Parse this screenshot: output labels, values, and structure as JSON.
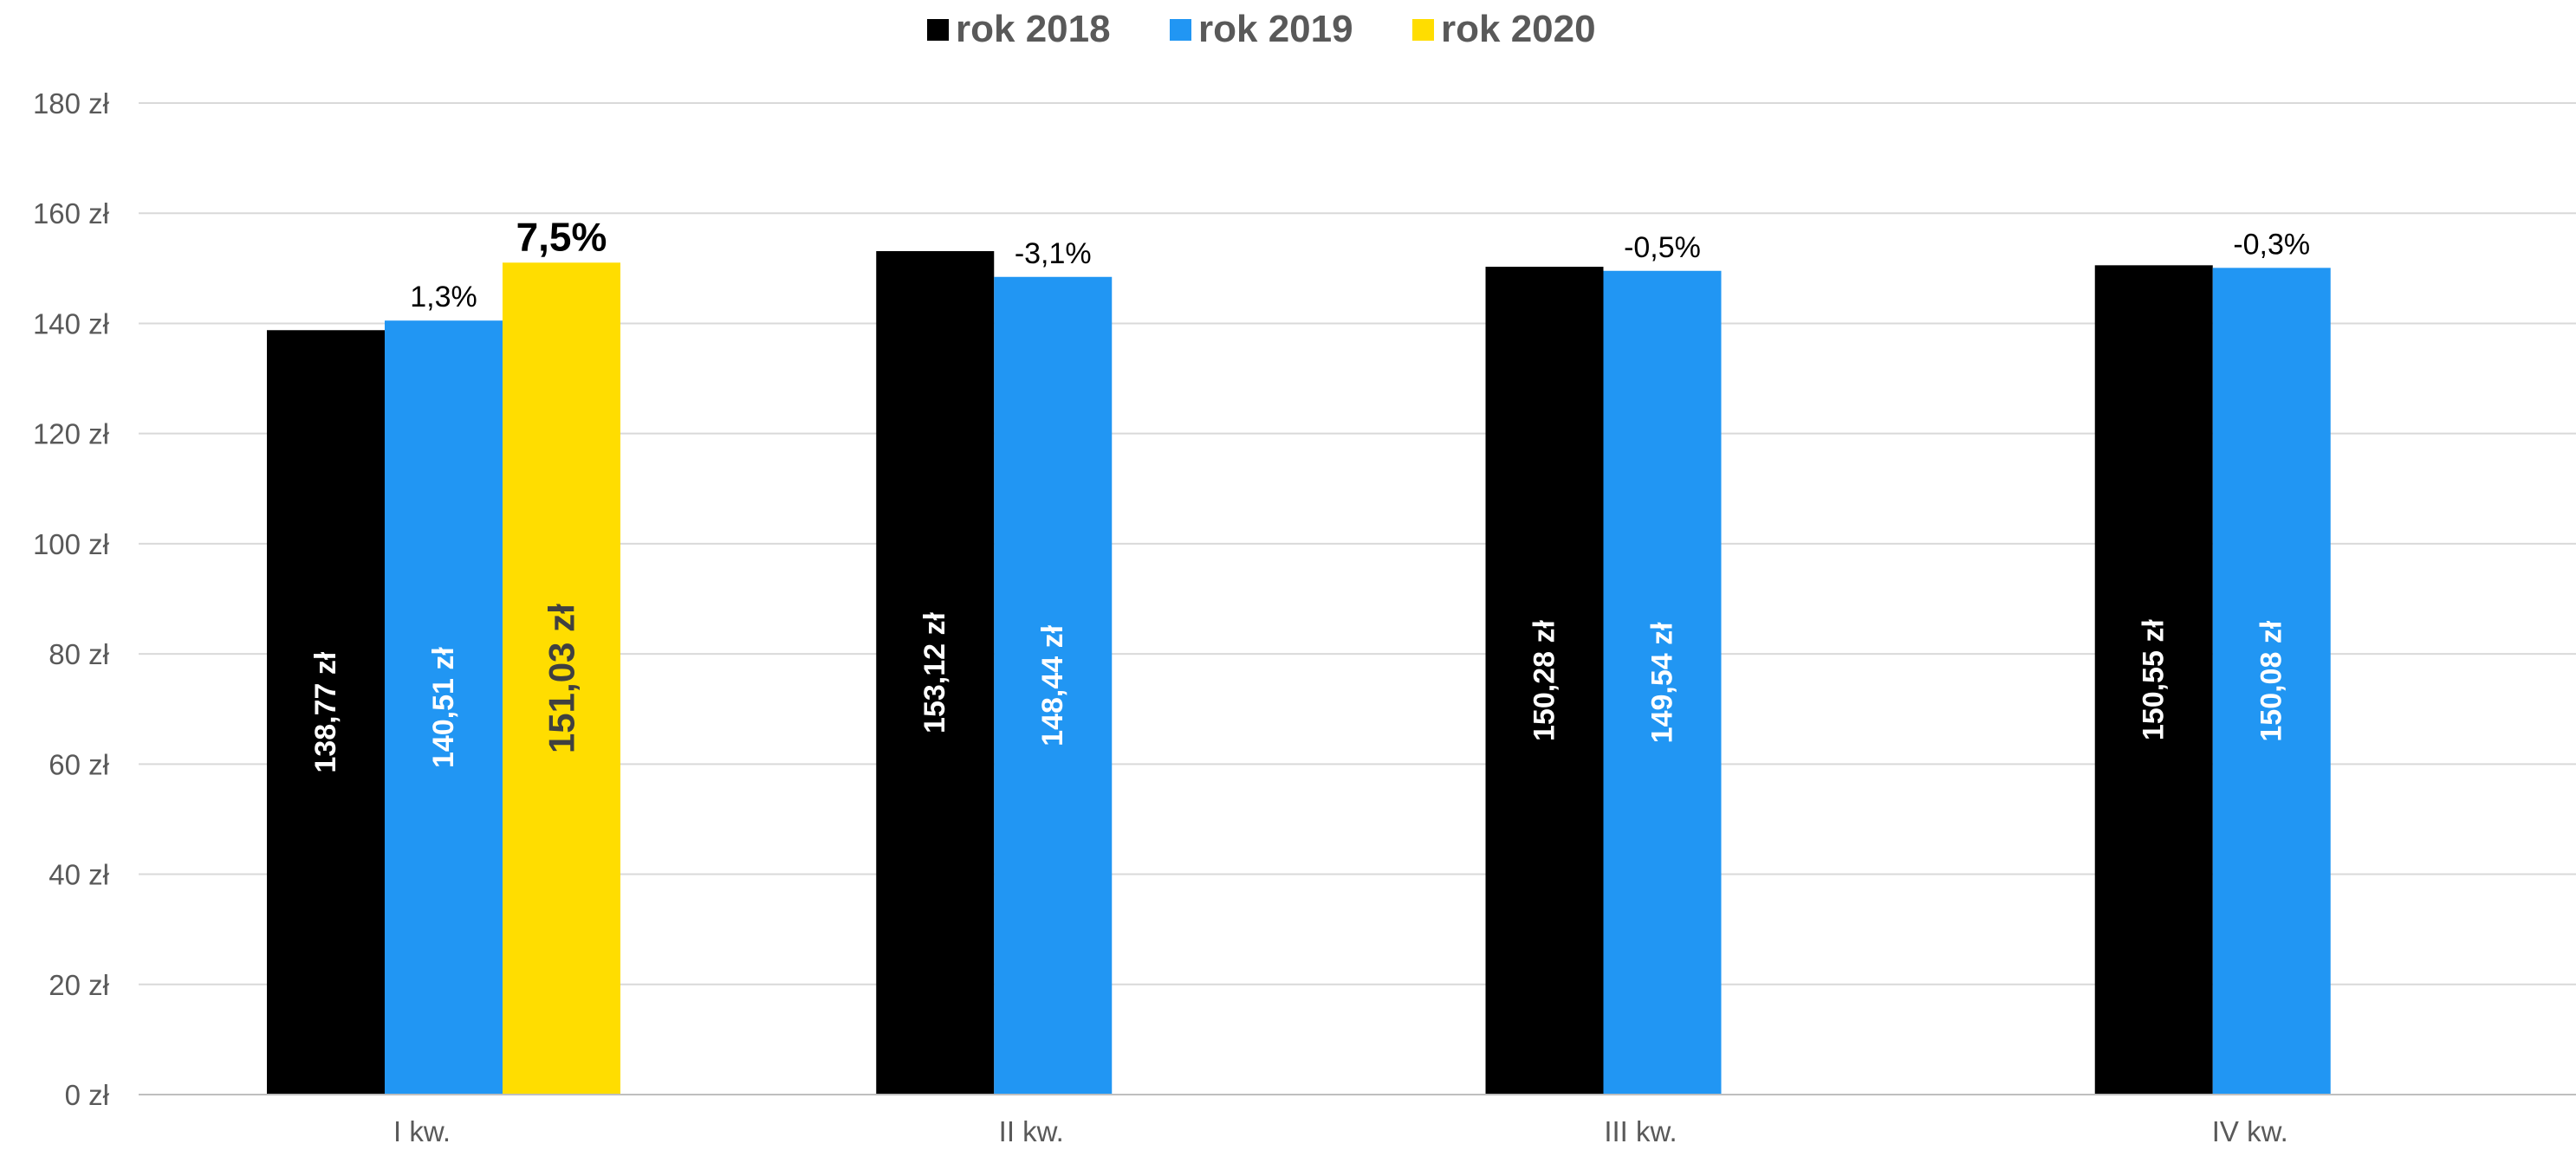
{
  "chart_data": {
    "type": "bar",
    "categories": [
      "I kw.",
      "II kw.",
      "III kw.",
      "IV kw."
    ],
    "series": [
      {
        "name": "rok 2018",
        "color": "#000000",
        "values": [
          138.77,
          153.12,
          150.28,
          150.55
        ],
        "labels": [
          "138,77 zł",
          "153,12 zł",
          "150,28 zł",
          "150,55 zł"
        ]
      },
      {
        "name": "rok 2019",
        "color": "#2196F3",
        "values": [
          140.51,
          148.44,
          149.54,
          150.08
        ],
        "labels": [
          "140,51 zł",
          "148,44 zł",
          "149,54 zł",
          "150,08 zł"
        ]
      },
      {
        "name": "rok 2020",
        "color": "#FFDD00",
        "values": [
          151.03,
          null,
          null,
          null
        ],
        "labels": [
          "151,03 zł",
          null,
          null,
          null
        ]
      }
    ],
    "annotations": [
      {
        "category": "I kw.",
        "series": "rok 2019",
        "text": "1,3%",
        "emphasis": false
      },
      {
        "category": "I kw.",
        "series": "rok 2020",
        "text": "7,5%",
        "emphasis": true
      },
      {
        "category": "II kw.",
        "series": "rok 2019",
        "text": "-3,1%",
        "emphasis": false
      },
      {
        "category": "III kw.",
        "series": "rok 2019",
        "text": "-0,5%",
        "emphasis": false
      },
      {
        "category": "IV kw.",
        "series": "rok 2019",
        "text": "-0,3%",
        "emphasis": false
      }
    ],
    "yticks": [
      "0 zł",
      "20 zł",
      "40 zł",
      "60 zł",
      "80 zł",
      "100 zł",
      "120 zł",
      "140 zł",
      "160 zł",
      "180 zł"
    ],
    "ylim": [
      0,
      180
    ],
    "grid": true,
    "legend_position": "top-center",
    "title": "",
    "xlabel": "",
    "ylabel": ""
  }
}
